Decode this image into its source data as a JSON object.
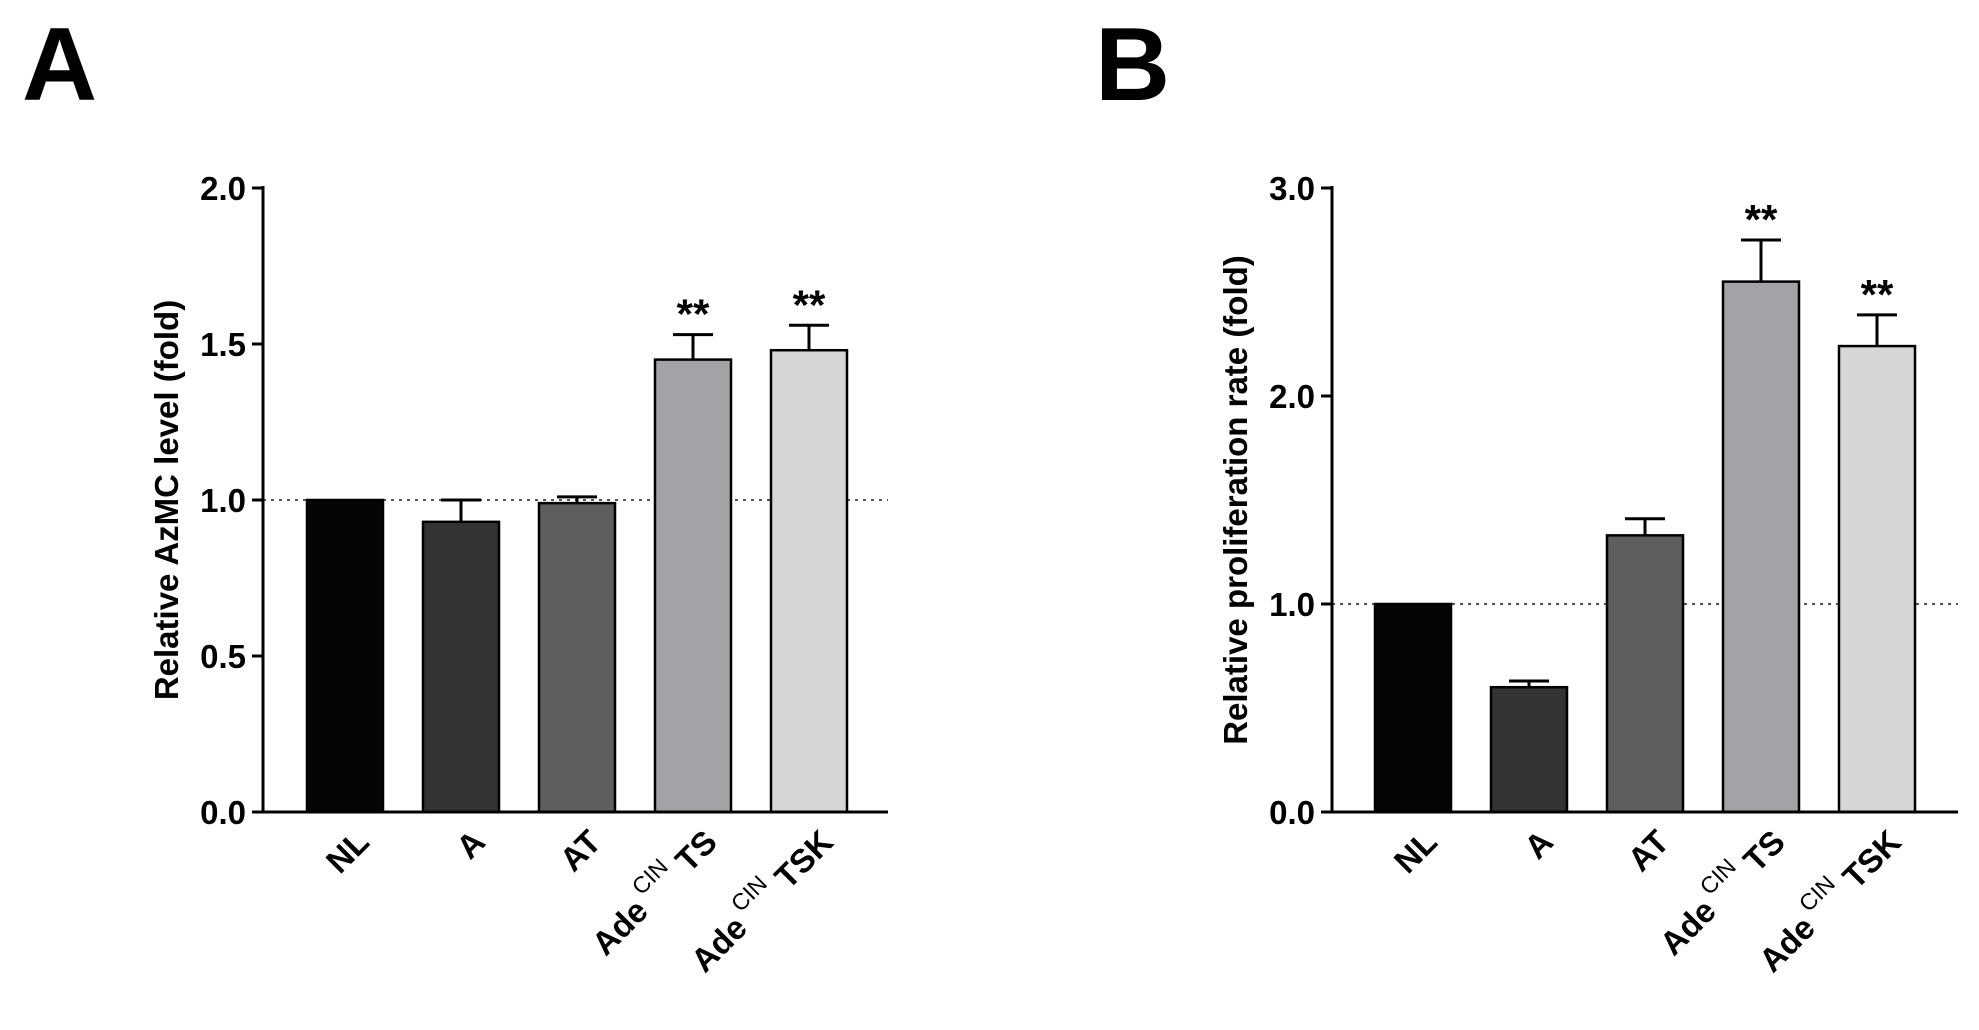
{
  "figure": {
    "panel_a_label": "A",
    "panel_b_label": "B"
  },
  "chart_data": [
    {
      "panel": "A",
      "type": "bar",
      "title": "",
      "xlabel": "",
      "ylabel": "Relative AzMC level (fold)",
      "ylim": [
        0,
        2.0
      ],
      "yticks": [
        0.0,
        0.5,
        1.0,
        1.5,
        2.0
      ],
      "ytick_labels": [
        "0.0",
        "0.5",
        "1.0",
        "1.5",
        "2.0"
      ],
      "reference_line": 1.0,
      "categories": [
        {
          "main": "NL",
          "prefix": "",
          "sup": ""
        },
        {
          "main": "A",
          "prefix": "",
          "sup": ""
        },
        {
          "main": "AT",
          "prefix": "",
          "sup": ""
        },
        {
          "main": "TS",
          "prefix": "Ade",
          "sup": "CIN"
        },
        {
          "main": "TSK",
          "prefix": "Ade",
          "sup": "CIN"
        }
      ],
      "values": [
        1.0,
        0.93,
        0.99,
        1.45,
        1.48
      ],
      "errors": [
        0.0,
        0.07,
        0.02,
        0.08,
        0.08
      ],
      "significance": [
        "",
        "",
        "",
        "**",
        "**"
      ],
      "colors": [
        "#050505",
        "#333333",
        "#5e5e5e",
        "#a3a3a6",
        "#d6d6d6"
      ]
    },
    {
      "panel": "B",
      "type": "bar",
      "title": "",
      "xlabel": "",
      "ylabel": "Relative proliferation rate (fold)",
      "ylim": [
        0,
        3.0
      ],
      "yticks": [
        0.0,
        1.0,
        2.0,
        3.0
      ],
      "ytick_labels": [
        "0.0",
        "1.0",
        "2.0",
        "3.0"
      ],
      "reference_line": 1.0,
      "categories": [
        {
          "main": "NL",
          "prefix": "",
          "sup": ""
        },
        {
          "main": "A",
          "prefix": "",
          "sup": ""
        },
        {
          "main": "AT",
          "prefix": "",
          "sup": ""
        },
        {
          "main": "TS",
          "prefix": "Ade",
          "sup": "CIN"
        },
        {
          "main": "TSK",
          "prefix": "Ade",
          "sup": "CIN"
        }
      ],
      "values": [
        1.0,
        0.6,
        1.33,
        2.55,
        2.24
      ],
      "errors": [
        0.0,
        0.03,
        0.08,
        0.2,
        0.15
      ],
      "significance": [
        "",
        "",
        "",
        "**",
        "**"
      ],
      "colors": [
        "#050505",
        "#333333",
        "#5e5e5e",
        "#a3a3a6",
        "#d6d6d6"
      ]
    }
  ]
}
